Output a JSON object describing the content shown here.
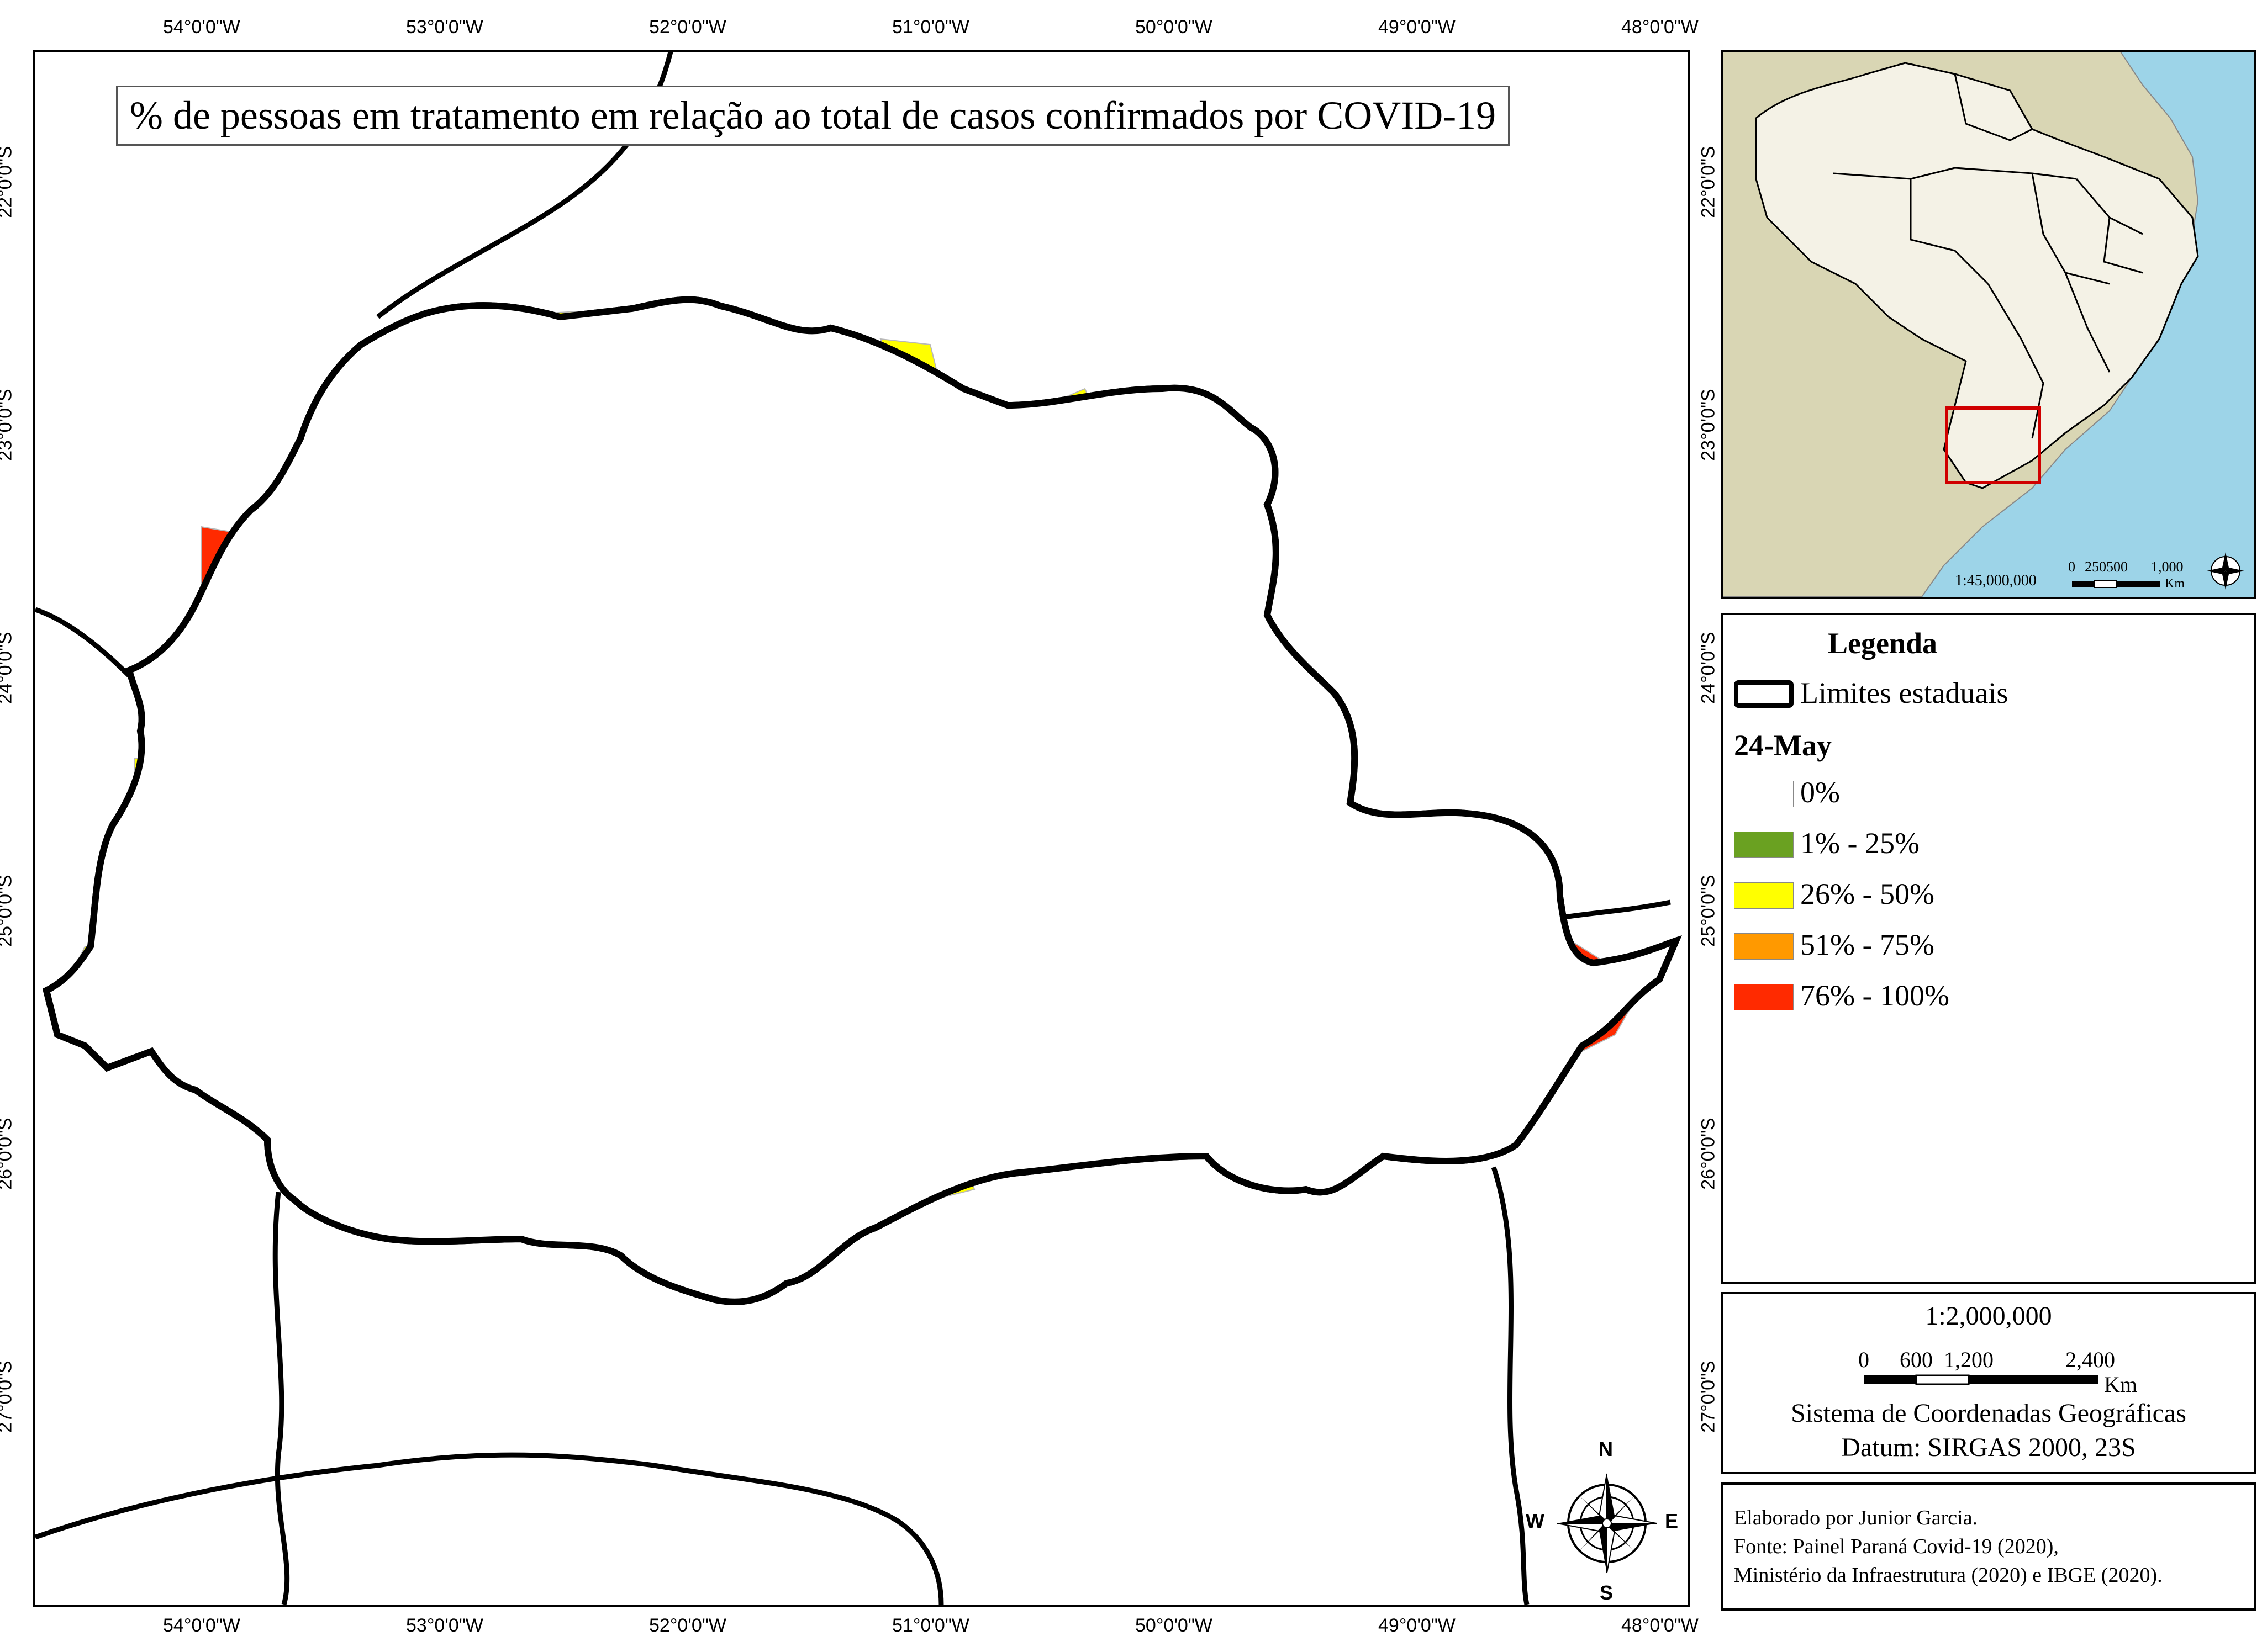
{
  "coordinates": {
    "top_lon": [
      "54°0'0\"W",
      "53°0'0\"W",
      "52°0'0\"W",
      "51°0'0\"W",
      "50°0'0\"W",
      "49°0'0\"W",
      "48°0'0\"W"
    ],
    "bottom_lon": [
      "54°0'0\"W",
      "53°0'0\"W",
      "52°0'0\"W",
      "51°0'0\"W",
      "50°0'0\"W",
      "49°0'0\"W",
      "48°0'0\"W"
    ],
    "left_lat": [
      "22°0'0\"S",
      "23°0'0\"S",
      "24°0'0\"S",
      "25°0'0\"S",
      "26°0'0\"S",
      "27°0'0\"S"
    ],
    "right_lat": [
      "22°0'0\"S",
      "23°0'0\"S",
      "24°0'0\"S",
      "25°0'0\"S",
      "26°0'0\"S",
      "27°0'0\"S"
    ]
  },
  "map": {
    "title": "% de pessoas em tratamento em relação ao total de casos confirmados por COVID-19",
    "compass": {
      "n": "N",
      "s": "S",
      "e": "E",
      "w": "W"
    }
  },
  "inset": {
    "scale_ratio": "1:45,000,000",
    "scale_ticks": [
      "0",
      "250500",
      "1,000"
    ],
    "scale_unit": "Km"
  },
  "legend": {
    "title": "Legenda",
    "boundary_label": "Limites estaduais",
    "date_label": "24-May",
    "classes": [
      {
        "label": "0%",
        "color": "#ffffff"
      },
      {
        "label": "1% - 25%",
        "color": "#6aa121"
      },
      {
        "label": "26% - 50%",
        "color": "#ffff00"
      },
      {
        "label": "51% - 75%",
        "color": "#ff9900"
      },
      {
        "label": "76% - 100%",
        "color": "#ff2a00"
      }
    ]
  },
  "scale": {
    "ratio": "1:2,000,000",
    "ticks": [
      "0",
      "600",
      "1,200",
      "2,400"
    ],
    "unit": "Km",
    "crs_line1": "Sistema de Coordenadas Geográficas",
    "crs_line2": "Datum: SIRGAS 2000, 23S"
  },
  "credits": {
    "line1": "Elaborado por Junior Garcia.",
    "line2": "Fonte: Painel Paraná Covid-19 (2020),",
    "line3": "Ministério da Infraestrutura (2020) e IBGE (2020)."
  }
}
